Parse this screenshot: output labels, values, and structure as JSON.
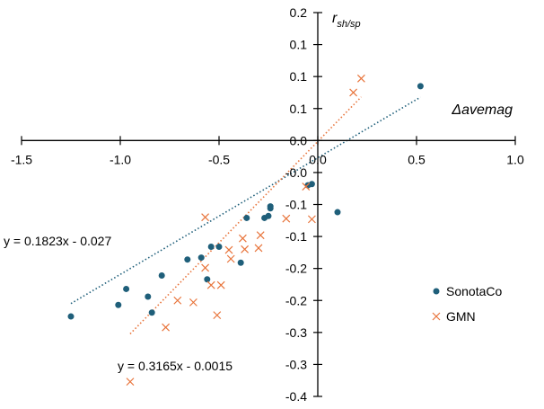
{
  "chart_data": {
    "type": "scatter",
    "title": "",
    "xlabel": "Δavemag",
    "ylabel": "r",
    "ylabel_sub": "sh/sp",
    "xlim": [
      -1.5,
      1.0
    ],
    "ylim": [
      -0.4,
      0.2
    ],
    "x_ticks": [
      -1.5,
      -1.0,
      -0.5,
      0.0,
      0.5,
      1.0
    ],
    "x_tick_labels": [
      "-1.5",
      "-1.0",
      "-0.5",
      "0.0",
      "0.5",
      "1.0"
    ],
    "y_ticks": [
      0.2,
      0.15,
      0.1,
      0.05,
      0.0,
      -0.05,
      -0.1,
      -0.15,
      -0.2,
      -0.25,
      -0.3,
      -0.35,
      -0.4
    ],
    "y_tick_labels": [
      "0.2",
      "0.1",
      "0.1",
      "0.1",
      "0.0",
      "-0.0",
      "-0.1",
      "-0.1",
      "-0.2",
      "-0.2",
      "-0.3",
      "-0.3",
      "-0.4"
    ],
    "grid": false,
    "legend_position": "right",
    "series": [
      {
        "name": "SonotaCo",
        "marker": "circle",
        "color": "#1F5F7A",
        "x": [
          -1.25,
          -0.97,
          -1.01,
          -0.86,
          -0.84,
          -0.79,
          -0.66,
          -0.59,
          -0.56,
          -0.54,
          -0.5,
          -0.39,
          -0.36,
          -0.27,
          -0.25,
          -0.24,
          -0.24,
          -0.05,
          -0.03,
          0.1,
          0.52
        ],
        "y": [
          -0.275,
          -0.232,
          -0.257,
          -0.244,
          -0.269,
          -0.211,
          -0.186,
          -0.183,
          -0.217,
          -0.166,
          -0.166,
          -0.191,
          -0.121,
          -0.121,
          -0.118,
          -0.106,
          -0.103,
          -0.07,
          -0.068,
          -0.112,
          0.085
        ],
        "trendline": {
          "slope": 0.1823,
          "intercept": -0.027,
          "equation": "y = 0.1823x - 0.027"
        }
      },
      {
        "name": "GMN",
        "marker": "cross",
        "color": "#E8743B",
        "x": [
          -0.95,
          -0.77,
          -0.71,
          -0.63,
          -0.57,
          -0.57,
          -0.54,
          -0.51,
          -0.49,
          -0.45,
          -0.44,
          -0.38,
          -0.37,
          -0.3,
          -0.29,
          -0.16,
          -0.06,
          -0.03,
          0.18,
          0.22
        ],
        "y": [
          -0.377,
          -0.292,
          -0.25,
          -0.253,
          -0.199,
          -0.12,
          -0.226,
          -0.273,
          -0.226,
          -0.171,
          -0.185,
          -0.153,
          -0.17,
          -0.168,
          -0.148,
          -0.122,
          -0.072,
          -0.123,
          0.075,
          0.097
        ],
        "trendline": {
          "slope": 0.3165,
          "intercept": -0.0015,
          "equation": "y = 0.3165x - 0.0015"
        }
      }
    ]
  }
}
